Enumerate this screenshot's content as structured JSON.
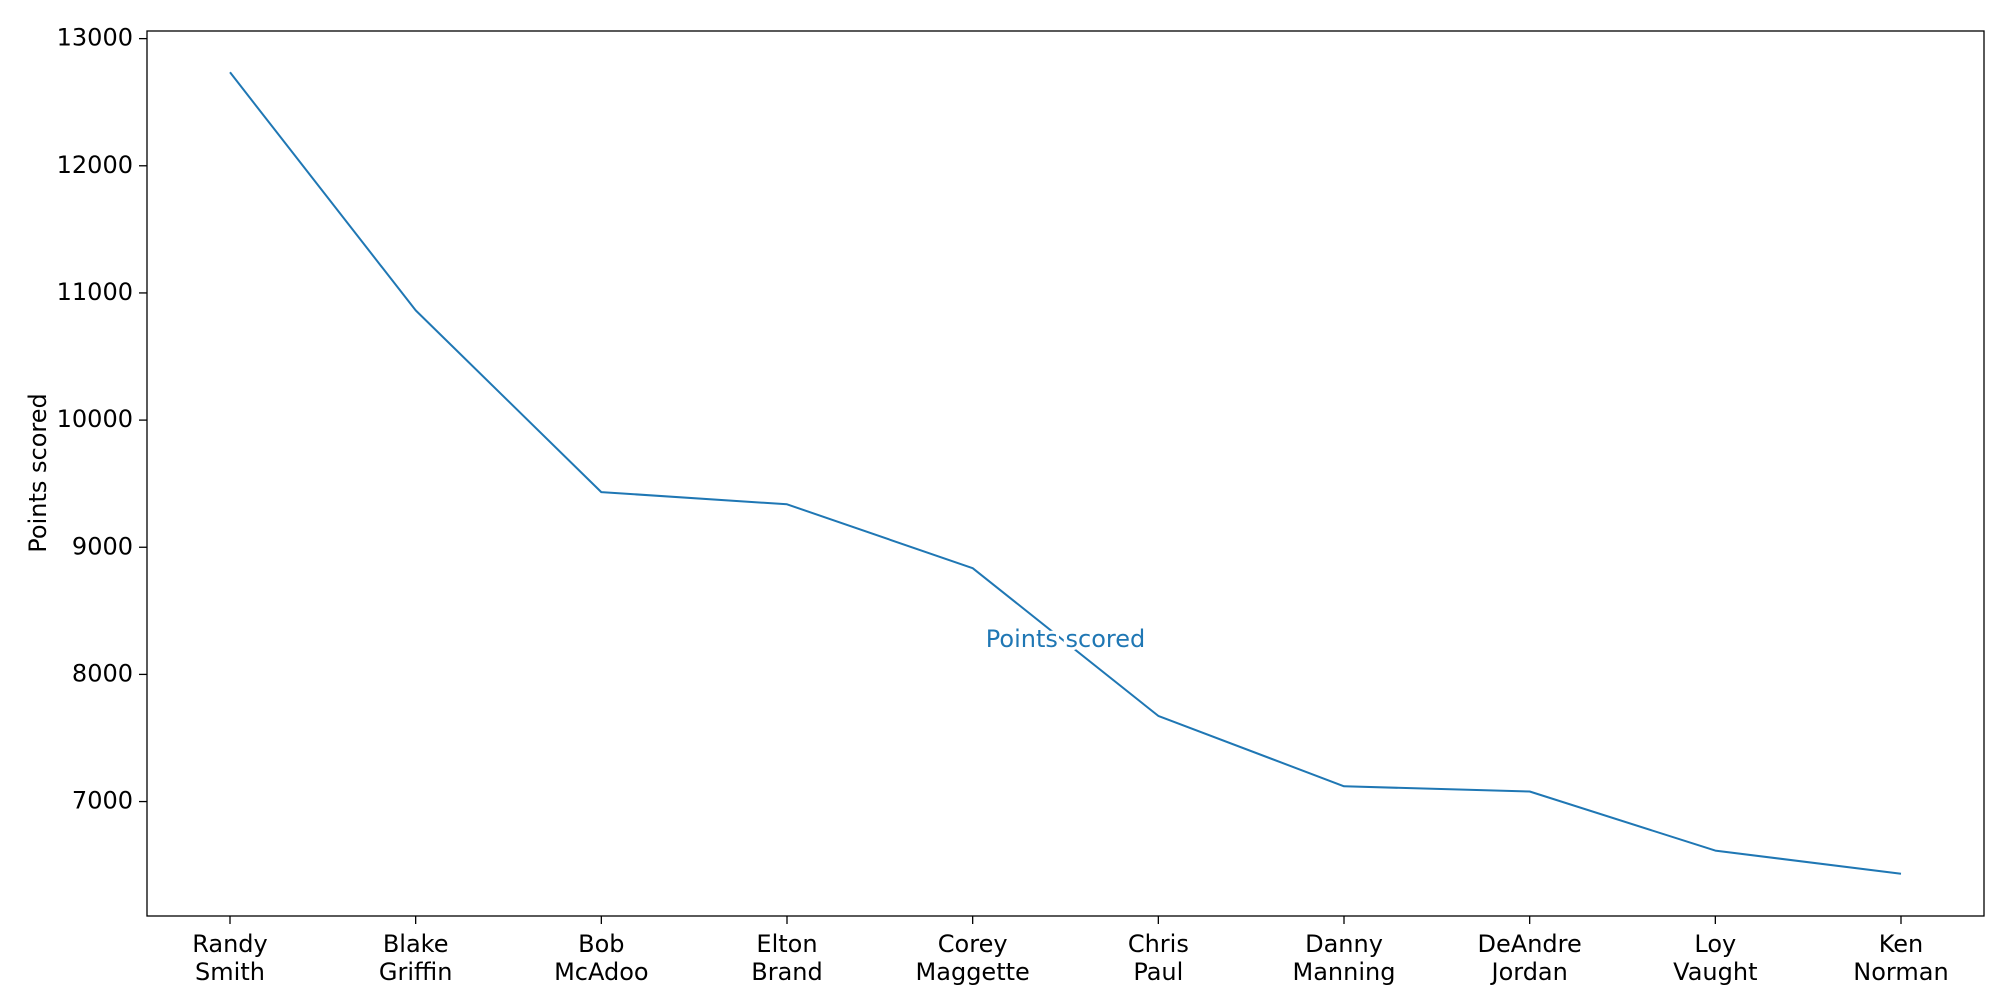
{
  "chart_data": {
    "type": "line",
    "title": "",
    "xlabel": "",
    "ylabel": "Points scored",
    "categories": [
      "Randy Smith",
      "Blake Griffin",
      "Bob McAdoo",
      "Elton Brand",
      "Corey Maggette",
      "Chris Paul",
      "Danny Manning",
      "DeAndre Jordan",
      "Loy Vaught",
      "Ken Norman"
    ],
    "series": [
      {
        "name": "Points scored",
        "color": "#1f77b4",
        "values": [
          12735,
          10863,
          9434,
          9338,
          8835,
          7674,
          7120,
          7079,
          6614,
          6432
        ]
      }
    ],
    "inline_label": {
      "text": "Points scored",
      "x_category": "Corey Maggette",
      "y": 8270
    },
    "ylim": [
      6100,
      13060
    ],
    "yticks": [
      7000,
      8000,
      9000,
      10000,
      11000,
      12000,
      13000
    ],
    "grid": false,
    "legend": "none"
  }
}
